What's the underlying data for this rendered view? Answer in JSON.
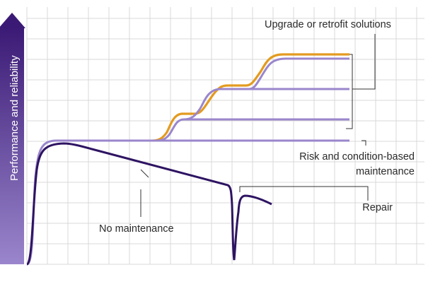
{
  "yaxis": {
    "label": "Performance and reliability"
  },
  "annotations": {
    "upgrade": "Upgrade or retrofit solutions",
    "risk_line1": "Risk and condition-based",
    "risk_line2": "maintenance",
    "repair": "Repair",
    "no_maintenance": "No maintenance"
  },
  "colors": {
    "grid": "#d9d9d9",
    "axis_gradient_top": "#3b1a75",
    "axis_gradient_bottom": "#9a86cc",
    "no_maintenance_curve": "#2e1462",
    "maintenance_curve": "#9a86cc",
    "upgrade_curve": "#e39b20",
    "leader_lines": "#333333"
  },
  "icons": {
    "axis_arrow": "arrow-up-icon"
  }
}
